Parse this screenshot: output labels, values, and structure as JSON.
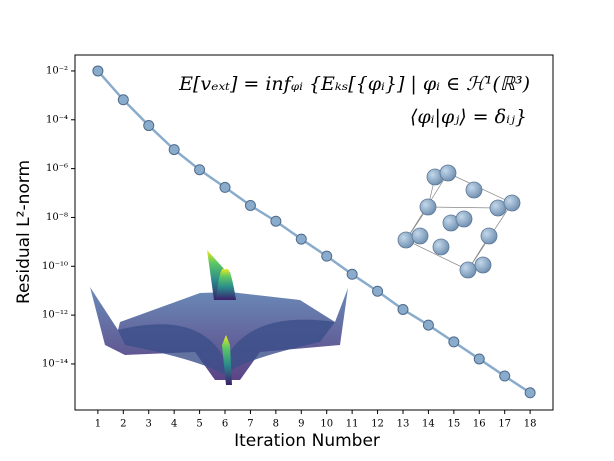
{
  "chart_data": {
    "type": "line",
    "x_label": "Iteration Number",
    "y_label": "Residual L²-norm",
    "annotations": [
      "E[vₑₓₜ] = infᵩᵢ {Eₖₛ[{φᵢ}] | φᵢ ∈ ℋ¹(ℝ³)",
      "⟨φᵢ|φⱼ⟩ = δᵢⱼ}"
    ],
    "x": [
      1,
      2,
      3,
      4,
      5,
      6,
      7,
      8,
      9,
      10,
      11,
      12,
      13,
      14,
      15,
      16,
      17,
      18
    ],
    "series": [
      {
        "color": "#8aaccc",
        "values": [
          0.01,
          0.00066,
          5.8e-05,
          6e-06,
          9e-07,
          1.7e-07,
          3.1e-08,
          7e-09,
          1.3e-09,
          2.6e-10,
          4.7e-11,
          9.5e-12,
          1.7e-12,
          3.9e-13,
          8e-14,
          1.6e-14,
          3.2e-15,
          6.6e-16
        ]
      }
    ],
    "xlim": [
      0.1,
      18.9
    ],
    "xticks": [
      1,
      2,
      3,
      4,
      5,
      6,
      7,
      8,
      9,
      10,
      11,
      12,
      13,
      14,
      15,
      16,
      17,
      18
    ],
    "ylim": [
      1.3e-16,
      0.045
    ],
    "yscale": "log",
    "yticks": [
      {
        "value": 0.01,
        "label": "10⁻²"
      },
      {
        "value": 0.0001,
        "label": "10⁻⁴"
      },
      {
        "value": 1e-06,
        "label": "10⁻⁶"
      },
      {
        "value": 1e-08,
        "label": "10⁻⁸"
      },
      {
        "value": 1e-10,
        "label": "10⁻¹⁰"
      },
      {
        "value": 1e-12,
        "label": "10⁻¹²"
      },
      {
        "value": 1e-14,
        "label": "10⁻¹⁴"
      }
    ],
    "grid": false
  }
}
